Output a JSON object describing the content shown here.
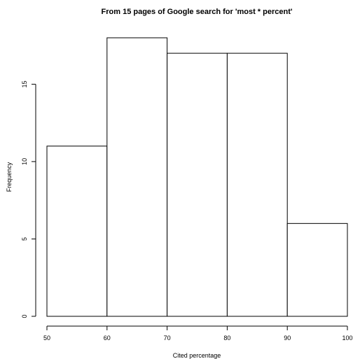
{
  "chart_data": {
    "type": "bar",
    "title": "From 15 pages of Google search for 'most * percent'",
    "xlabel": "Cited percentage",
    "ylabel": "Frequency",
    "bins": [
      {
        "from": 50,
        "to": 60,
        "count": 11
      },
      {
        "from": 60,
        "to": 70,
        "count": 18
      },
      {
        "from": 70,
        "to": 80,
        "count": 17
      },
      {
        "from": 80,
        "to": 90,
        "count": 17
      },
      {
        "from": 90,
        "to": 100,
        "count": 6
      }
    ],
    "xlim": [
      50,
      100
    ],
    "ylim": [
      0,
      18
    ],
    "x_ticks": [
      "50",
      "60",
      "70",
      "80",
      "90",
      "100"
    ],
    "y_ticks": [
      "0",
      "5",
      "10",
      "15"
    ],
    "grid": false,
    "legend": false,
    "colors": {
      "bar_fill": "#ffffff",
      "bar_stroke": "#000000"
    }
  }
}
